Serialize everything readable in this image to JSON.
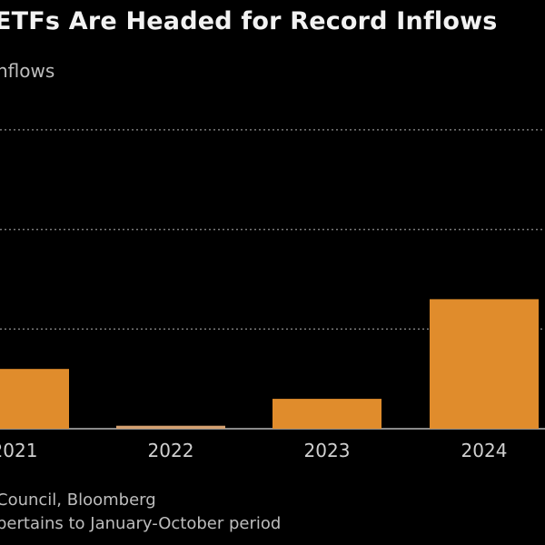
{
  "chart_data": {
    "type": "bar",
    "title": "ETFs Are Headed for Record Inflows",
    "subtitle": "nflows",
    "categories": [
      "2021",
      "2022",
      "2023",
      "2024"
    ],
    "values": [
      0.6,
      0.03,
      0.3,
      1.3
    ],
    "value_unit": "relative (gridline units; y-axis labels not visible in crop)",
    "gridlines": [
      1,
      2,
      3
    ],
    "ylim": [
      0,
      3
    ],
    "grid": true,
    "bar_color": "#e08c2c",
    "xlabel": "",
    "ylabel": ""
  },
  "footer": {
    "source": "Council, Bloomberg",
    "note": " pertains to January-October period"
  }
}
